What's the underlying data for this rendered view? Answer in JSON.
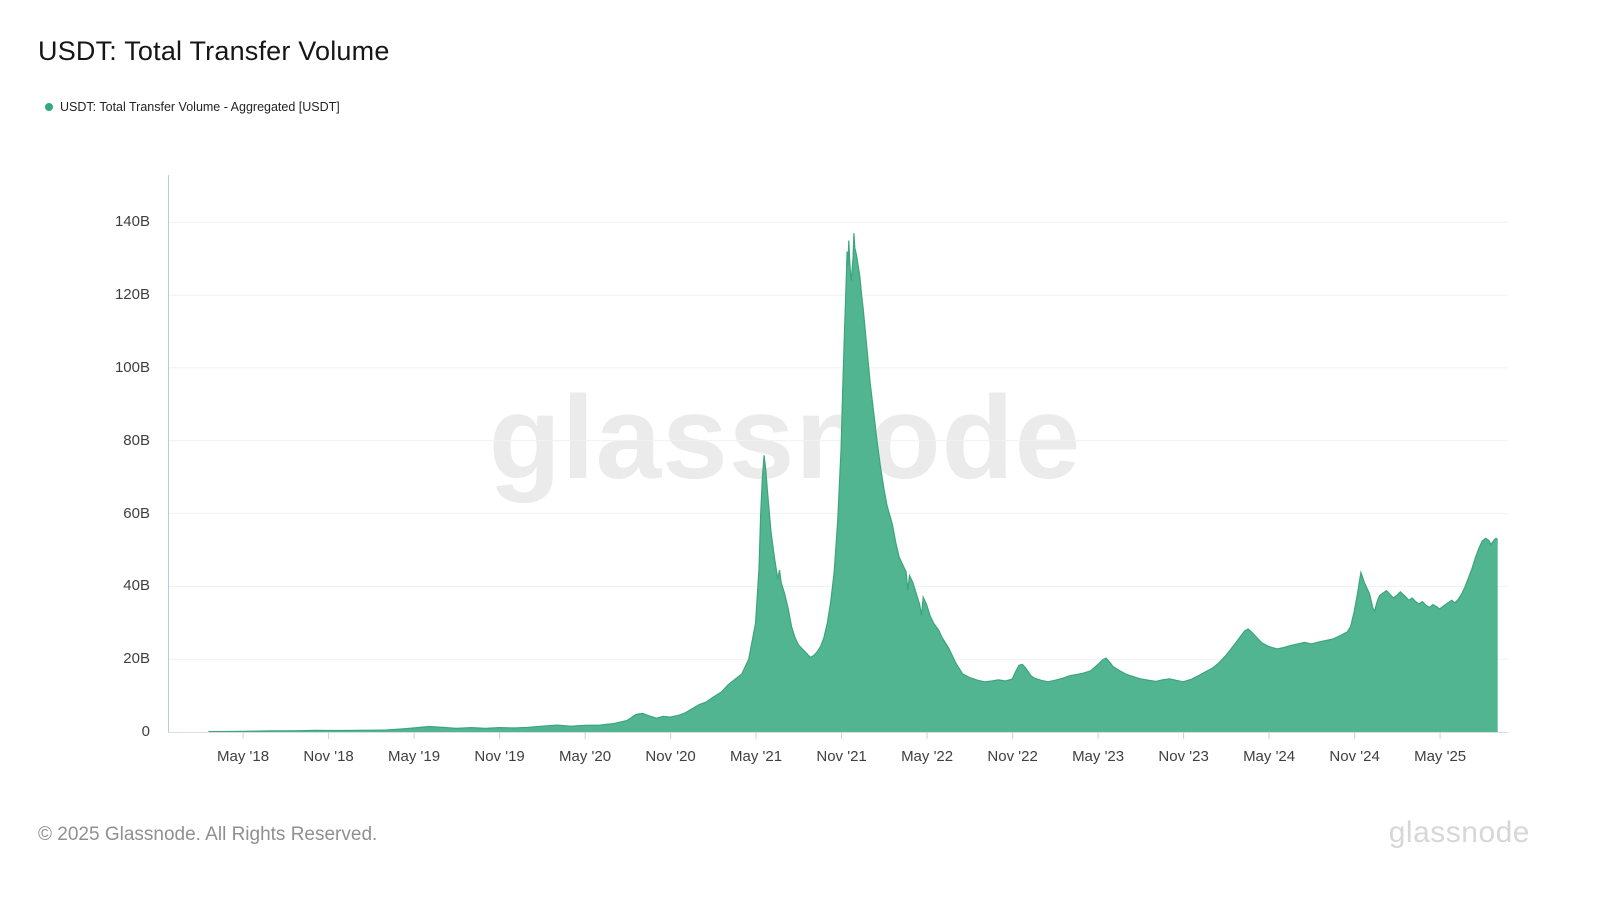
{
  "page": {
    "title": "USDT: Total Transfer Volume"
  },
  "legend": {
    "label": "USDT: Total Transfer Volume - Aggregated [USDT]",
    "dot_color": "#31a97c"
  },
  "watermark": "glassnode",
  "footer": {
    "copyright": "© 2025 Glassnode. All Rights Reserved.",
    "brand": "glassnode"
  },
  "colors": {
    "area_fill": "#52b591",
    "area_stroke": "#3da47e",
    "grid": "#f1f1f1",
    "axis_line": "#b3cdd1",
    "baseline": "#dadee0",
    "tick": "#c9d2d4",
    "label_text": "#3f3f3f"
  },
  "chart_data": {
    "type": "area",
    "title": "USDT: Total Transfer Volume",
    "series_name": "USDT: Total Transfer Volume - Aggregated [USDT]",
    "unit": "USDT transfer volume, billions",
    "legend_position": "top-left",
    "grid": "horizontal-only",
    "x_range": [
      2017.894,
      2025.73
    ],
    "ylim": [
      0,
      153
    ],
    "y_ticks": [
      {
        "v": 0,
        "label": "0"
      },
      {
        "v": 20,
        "label": "20B"
      },
      {
        "v": 40,
        "label": "40B"
      },
      {
        "v": 60,
        "label": "60B"
      },
      {
        "v": 80,
        "label": "80B"
      },
      {
        "v": 100,
        "label": "100B"
      },
      {
        "v": 120,
        "label": "120B"
      },
      {
        "v": 140,
        "label": "140B"
      }
    ],
    "x_ticks": [
      {
        "t": 2018.333,
        "label": "May '18"
      },
      {
        "t": 2018.833,
        "label": "Nov '18"
      },
      {
        "t": 2019.333,
        "label": "May '19"
      },
      {
        "t": 2019.833,
        "label": "Nov '19"
      },
      {
        "t": 2020.333,
        "label": "May '20"
      },
      {
        "t": 2020.833,
        "label": "Nov '20"
      },
      {
        "t": 2021.333,
        "label": "May '21"
      },
      {
        "t": 2021.833,
        "label": "Nov '21"
      },
      {
        "t": 2022.333,
        "label": "May '22"
      },
      {
        "t": 2022.833,
        "label": "Nov '22"
      },
      {
        "t": 2023.333,
        "label": "May '23"
      },
      {
        "t": 2023.833,
        "label": "Nov '23"
      },
      {
        "t": 2024.333,
        "label": "May '24"
      },
      {
        "t": 2024.833,
        "label": "Nov '24"
      },
      {
        "t": 2025.333,
        "label": "May '25"
      }
    ],
    "points": [
      [
        2018.13,
        0.1
      ],
      [
        2018.25,
        0.15
      ],
      [
        2018.33,
        0.2
      ],
      [
        2018.42,
        0.25
      ],
      [
        2018.5,
        0.3
      ],
      [
        2018.58,
        0.3
      ],
      [
        2018.67,
        0.35
      ],
      [
        2018.75,
        0.45
      ],
      [
        2018.83,
        0.4
      ],
      [
        2018.92,
        0.4
      ],
      [
        2019.0,
        0.45
      ],
      [
        2019.08,
        0.5
      ],
      [
        2019.17,
        0.55
      ],
      [
        2019.25,
        0.8
      ],
      [
        2019.33,
        1.1
      ],
      [
        2019.42,
        1.5
      ],
      [
        2019.5,
        1.3
      ],
      [
        2019.58,
        1.0
      ],
      [
        2019.67,
        1.2
      ],
      [
        2019.75,
        1.0
      ],
      [
        2019.83,
        1.2
      ],
      [
        2019.92,
        1.1
      ],
      [
        2020.0,
        1.3
      ],
      [
        2020.08,
        1.6
      ],
      [
        2020.17,
        1.9
      ],
      [
        2020.25,
        1.6
      ],
      [
        2020.33,
        1.8
      ],
      [
        2020.42,
        1.9
      ],
      [
        2020.5,
        2.3
      ],
      [
        2020.58,
        3.2
      ],
      [
        2020.63,
        4.8
      ],
      [
        2020.67,
        5.1
      ],
      [
        2020.71,
        4.4
      ],
      [
        2020.75,
        3.8
      ],
      [
        2020.79,
        4.3
      ],
      [
        2020.83,
        4.1
      ],
      [
        2020.88,
        4.6
      ],
      [
        2020.92,
        5.3
      ],
      [
        2021.0,
        7.5
      ],
      [
        2021.04,
        8.2
      ],
      [
        2021.08,
        9.5
      ],
      [
        2021.13,
        11
      ],
      [
        2021.17,
        13
      ],
      [
        2021.21,
        14.5
      ],
      [
        2021.25,
        16
      ],
      [
        2021.29,
        20
      ],
      [
        2021.33,
        30
      ],
      [
        2021.35,
        45
      ],
      [
        2021.36,
        60
      ],
      [
        2021.37,
        70
      ],
      [
        2021.38,
        76
      ],
      [
        2021.39,
        72
      ],
      [
        2021.4,
        66
      ],
      [
        2021.42,
        55
      ],
      [
        2021.44,
        48
      ],
      [
        2021.46,
        42
      ],
      [
        2021.47,
        44.5
      ],
      [
        2021.48,
        41
      ],
      [
        2021.5,
        38
      ],
      [
        2021.52,
        34
      ],
      [
        2021.54,
        29
      ],
      [
        2021.56,
        26
      ],
      [
        2021.58,
        24
      ],
      [
        2021.6,
        23
      ],
      [
        2021.63,
        21.5
      ],
      [
        2021.65,
        20.5
      ],
      [
        2021.67,
        21
      ],
      [
        2021.69,
        22
      ],
      [
        2021.71,
        23.5
      ],
      [
        2021.73,
        26
      ],
      [
        2021.75,
        30
      ],
      [
        2021.77,
        36
      ],
      [
        2021.79,
        44
      ],
      [
        2021.81,
        58
      ],
      [
        2021.83,
        78
      ],
      [
        2021.84,
        95
      ],
      [
        2021.85,
        110
      ],
      [
        2021.86,
        124
      ],
      [
        2021.865,
        132
      ],
      [
        2021.87,
        128
      ],
      [
        2021.875,
        135
      ],
      [
        2021.88,
        130
      ],
      [
        2021.885,
        126
      ],
      [
        2021.89,
        124
      ],
      [
        2021.9,
        130
      ],
      [
        2021.905,
        137
      ],
      [
        2021.91,
        133
      ],
      [
        2021.92,
        131
      ],
      [
        2021.93,
        128
      ],
      [
        2021.94,
        125
      ],
      [
        2021.95,
        120
      ],
      [
        2021.96,
        116
      ],
      [
        2021.97,
        111
      ],
      [
        2021.98,
        106
      ],
      [
        2022.0,
        96
      ],
      [
        2022.02,
        88
      ],
      [
        2022.04,
        80
      ],
      [
        2022.06,
        73
      ],
      [
        2022.08,
        67
      ],
      [
        2022.1,
        62
      ],
      [
        2022.13,
        57
      ],
      [
        2022.15,
        52
      ],
      [
        2022.17,
        48
      ],
      [
        2022.19,
        46
      ],
      [
        2022.21,
        44
      ],
      [
        2022.22,
        39
      ],
      [
        2022.23,
        43
      ],
      [
        2022.25,
        41
      ],
      [
        2022.27,
        38
      ],
      [
        2022.29,
        35
      ],
      [
        2022.3,
        32
      ],
      [
        2022.31,
        37
      ],
      [
        2022.33,
        35
      ],
      [
        2022.35,
        32
      ],
      [
        2022.37,
        30
      ],
      [
        2022.4,
        28
      ],
      [
        2022.42,
        26
      ],
      [
        2022.44,
        24.5
      ],
      [
        2022.46,
        23
      ],
      [
        2022.48,
        21
      ],
      [
        2022.5,
        19
      ],
      [
        2022.52,
        17.5
      ],
      [
        2022.54,
        16
      ],
      [
        2022.58,
        15
      ],
      [
        2022.63,
        14.2
      ],
      [
        2022.67,
        13.8
      ],
      [
        2022.71,
        14
      ],
      [
        2022.75,
        14.3
      ],
      [
        2022.79,
        14
      ],
      [
        2022.83,
        14.5
      ],
      [
        2022.85,
        16.5
      ],
      [
        2022.87,
        18.3
      ],
      [
        2022.89,
        18.6
      ],
      [
        2022.91,
        17.5
      ],
      [
        2022.94,
        15.5
      ],
      [
        2022.96,
        14.8
      ],
      [
        2023.0,
        14.2
      ],
      [
        2023.04,
        13.8
      ],
      [
        2023.08,
        14.2
      ],
      [
        2023.13,
        14.8
      ],
      [
        2023.17,
        15.5
      ],
      [
        2023.21,
        15.8
      ],
      [
        2023.25,
        16.2
      ],
      [
        2023.29,
        16.8
      ],
      [
        2023.33,
        18.5
      ],
      [
        2023.36,
        19.8
      ],
      [
        2023.38,
        20.3
      ],
      [
        2023.4,
        19.2
      ],
      [
        2023.42,
        18
      ],
      [
        2023.46,
        16.8
      ],
      [
        2023.5,
        15.8
      ],
      [
        2023.54,
        15.2
      ],
      [
        2023.58,
        14.6
      ],
      [
        2023.63,
        14.2
      ],
      [
        2023.67,
        13.9
      ],
      [
        2023.71,
        14.3
      ],
      [
        2023.75,
        14.6
      ],
      [
        2023.79,
        14.2
      ],
      [
        2023.83,
        13.8
      ],
      [
        2023.88,
        14.5
      ],
      [
        2023.92,
        15.5
      ],
      [
        2023.96,
        16.5
      ],
      [
        2024.0,
        17.5
      ],
      [
        2024.04,
        19
      ],
      [
        2024.08,
        21
      ],
      [
        2024.13,
        24
      ],
      [
        2024.17,
        26.5
      ],
      [
        2024.19,
        27.8
      ],
      [
        2024.21,
        28.3
      ],
      [
        2024.23,
        27.5
      ],
      [
        2024.25,
        26.5
      ],
      [
        2024.27,
        25.5
      ],
      [
        2024.29,
        24.5
      ],
      [
        2024.33,
        23.5
      ],
      [
        2024.38,
        22.8
      ],
      [
        2024.42,
        23.2
      ],
      [
        2024.46,
        23.8
      ],
      [
        2024.5,
        24.2
      ],
      [
        2024.54,
        24.6
      ],
      [
        2024.58,
        24.2
      ],
      [
        2024.63,
        24.8
      ],
      [
        2024.67,
        25.2
      ],
      [
        2024.71,
        25.6
      ],
      [
        2024.75,
        26.5
      ],
      [
        2024.79,
        27.5
      ],
      [
        2024.81,
        29
      ],
      [
        2024.83,
        33
      ],
      [
        2024.85,
        38
      ],
      [
        2024.86,
        41
      ],
      [
        2024.87,
        43.8
      ],
      [
        2024.88,
        42.5
      ],
      [
        2024.89,
        41
      ],
      [
        2024.9,
        40
      ],
      [
        2024.92,
        38
      ],
      [
        2024.93,
        36
      ],
      [
        2024.94,
        34
      ],
      [
        2024.95,
        33.2
      ],
      [
        2024.96,
        35
      ],
      [
        2024.97,
        36.5
      ],
      [
        2024.98,
        37.5
      ],
      [
        2025.0,
        38.2
      ],
      [
        2025.02,
        38.8
      ],
      [
        2025.04,
        37.8
      ],
      [
        2025.06,
        36.8
      ],
      [
        2025.08,
        37.5
      ],
      [
        2025.1,
        38.5
      ],
      [
        2025.13,
        37.2
      ],
      [
        2025.15,
        36.2
      ],
      [
        2025.17,
        36.8
      ],
      [
        2025.19,
        35.8
      ],
      [
        2025.21,
        35.2
      ],
      [
        2025.23,
        35.8
      ],
      [
        2025.25,
        34.8
      ],
      [
        2025.27,
        34.2
      ],
      [
        2025.29,
        35
      ],
      [
        2025.31,
        34.5
      ],
      [
        2025.33,
        33.8
      ],
      [
        2025.35,
        34.5
      ],
      [
        2025.38,
        35.5
      ],
      [
        2025.4,
        36.2
      ],
      [
        2025.42,
        35.5
      ],
      [
        2025.44,
        36.5
      ],
      [
        2025.46,
        38
      ],
      [
        2025.48,
        40
      ],
      [
        2025.5,
        42.5
      ],
      [
        2025.52,
        45
      ],
      [
        2025.54,
        48
      ],
      [
        2025.56,
        50.5
      ],
      [
        2025.58,
        52.5
      ],
      [
        2025.6,
        53.2
      ],
      [
        2025.62,
        52.5
      ],
      [
        2025.63,
        51.5
      ],
      [
        2025.65,
        52.8
      ],
      [
        2025.66,
        53.2
      ],
      [
        2025.67,
        52.8
      ]
    ]
  }
}
